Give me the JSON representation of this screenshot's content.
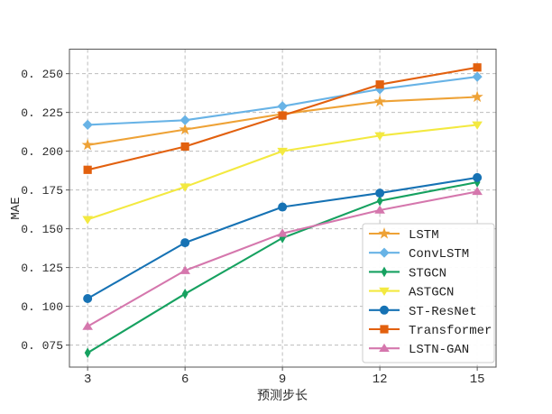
{
  "figure": {
    "background": "#ffffff",
    "plot_border_color": "#555555",
    "grid_color": "#bdbdbd",
    "text_color": "#2b2b2b"
  },
  "chart_data": {
    "type": "line",
    "title": "",
    "xlabel": "预测步长",
    "ylabel": "MAE",
    "x": [
      3,
      6,
      9,
      12,
      15
    ],
    "xticks": [
      "3",
      "6",
      "9",
      "12",
      "15"
    ],
    "yticks": [
      {
        "value": 0.075,
        "label": "0. 075"
      },
      {
        "value": 0.1,
        "label": "0. 100"
      },
      {
        "value": 0.125,
        "label": "0. 125"
      },
      {
        "value": 0.15,
        "label": "0. 150"
      },
      {
        "value": 0.175,
        "label": "0. 175"
      },
      {
        "value": 0.2,
        "label": "0. 200"
      },
      {
        "value": 0.225,
        "label": "0. 225"
      },
      {
        "value": 0.25,
        "label": "0. 250"
      }
    ],
    "xlim": [
      2.44,
      15.58
    ],
    "ylim": [
      0.0608,
      0.2658
    ],
    "grid": true,
    "legend_position": "lower right",
    "series": [
      {
        "name": "LSTM",
        "marker": "star",
        "color": "#eea236",
        "values": [
          0.204,
          0.214,
          0.224,
          0.232,
          0.235
        ]
      },
      {
        "name": "ConvLSTM",
        "marker": "diamond",
        "color": "#68b3e6",
        "values": [
          0.217,
          0.22,
          0.229,
          0.24,
          0.248
        ]
      },
      {
        "name": "STGCN",
        "marker": "thin-diamond",
        "color": "#16a160",
        "values": [
          0.07,
          0.108,
          0.144,
          0.168,
          0.18
        ]
      },
      {
        "name": "ASTGCN",
        "marker": "triangle-down",
        "color": "#f3e940",
        "values": [
          0.156,
          0.177,
          0.2,
          0.21,
          0.217
        ]
      },
      {
        "name": "ST-ResNet",
        "marker": "circle",
        "color": "#1672b4",
        "values": [
          0.105,
          0.141,
          0.164,
          0.173,
          0.183
        ]
      },
      {
        "name": "Transformer",
        "marker": "square",
        "color": "#e2600e",
        "values": [
          0.188,
          0.203,
          0.223,
          0.243,
          0.254
        ]
      },
      {
        "name": "LSTN-GAN",
        "marker": "triangle-up",
        "color": "#d577ad",
        "values": [
          0.087,
          0.123,
          0.147,
          0.162,
          0.174
        ]
      }
    ]
  }
}
